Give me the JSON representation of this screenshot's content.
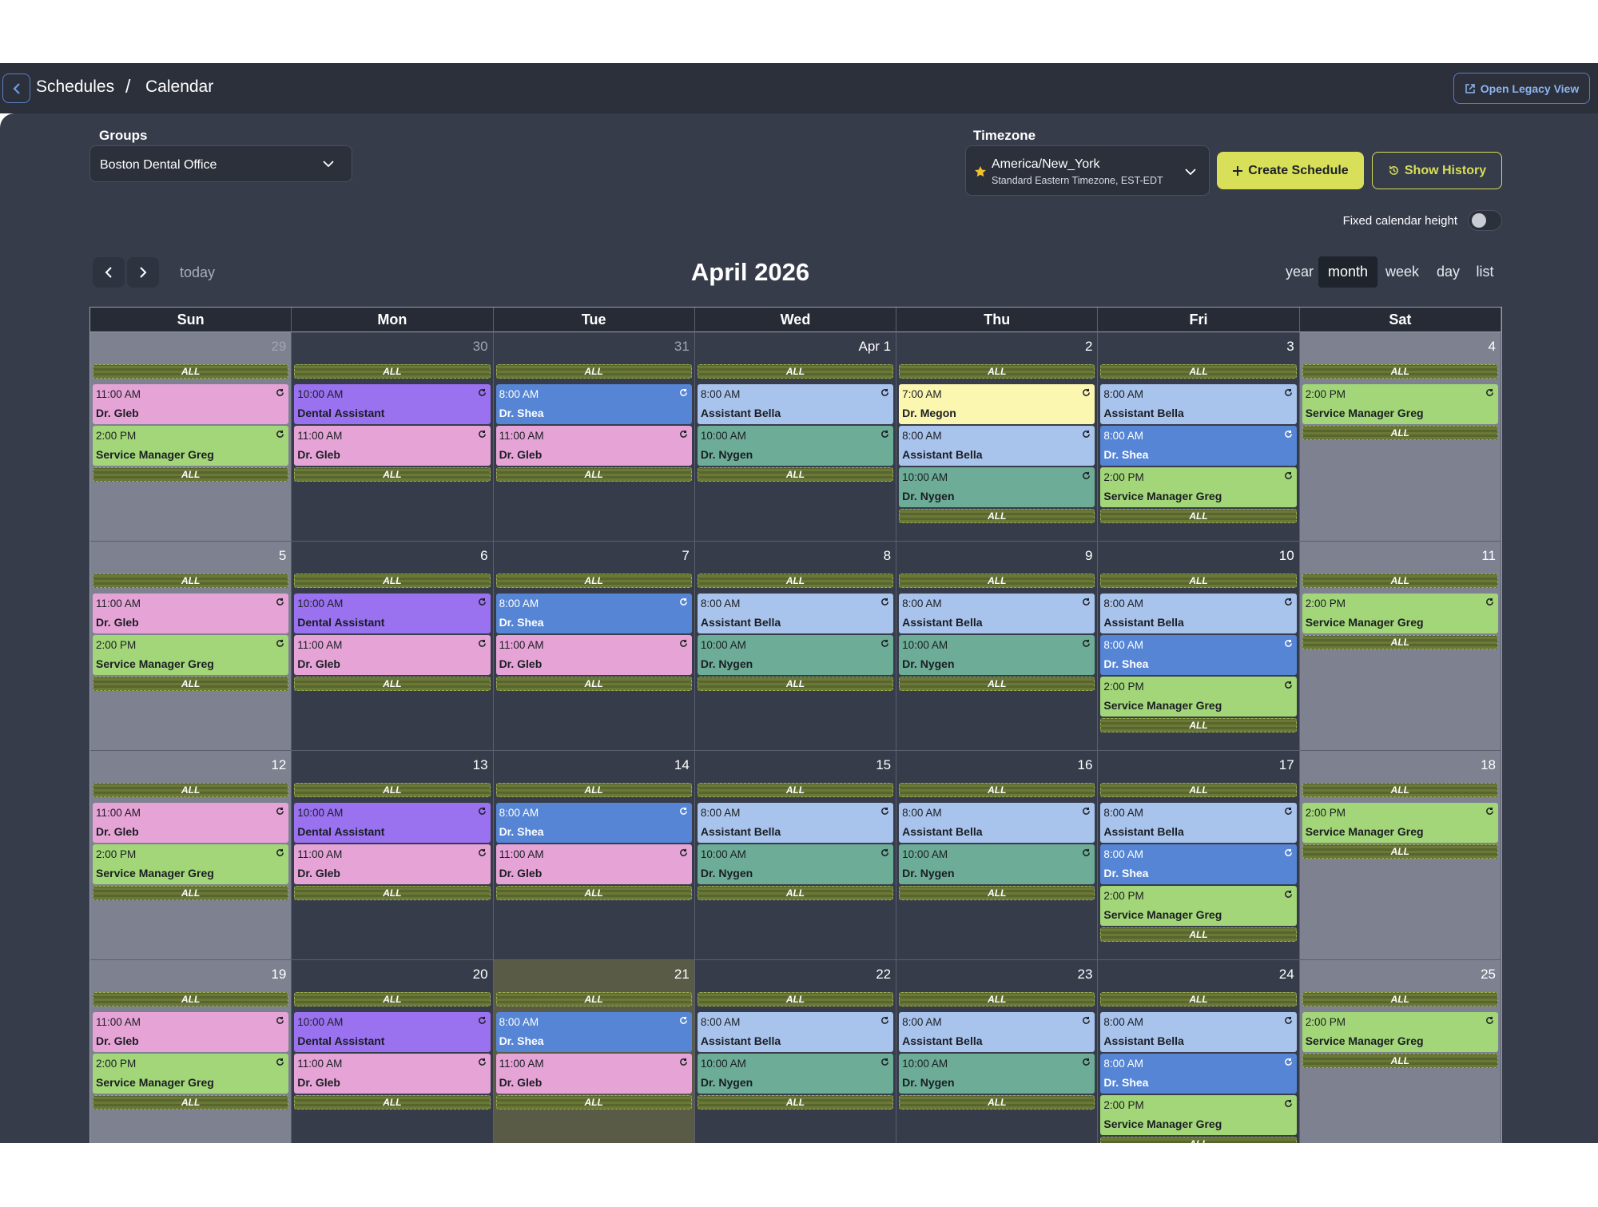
{
  "header": {
    "breadcrumb": [
      "Schedules",
      "/",
      "Calendar"
    ],
    "legacy_button": "Open Legacy View"
  },
  "filters": {
    "groups_label": "Groups",
    "group": "Boston Dental Office",
    "timezone_label": "Timezone",
    "timezone": "America/New_York",
    "timezone_detail": "Standard Eastern Timezone, EST-EDT",
    "create_button": "Create Schedule",
    "history_button": "Show History",
    "fixed_height_label": "Fixed calendar height"
  },
  "toolbar": {
    "today": "today",
    "title": "April 2026",
    "views": [
      "year",
      "month",
      "week",
      "day",
      "list"
    ],
    "active_view": 1
  },
  "calendar": {
    "weekdays": [
      "Sun",
      "Mon",
      "Tue",
      "Wed",
      "Thu",
      "Fri",
      "Sat"
    ],
    "weeks": [
      [
        {
          "label": "29",
          "muted": true,
          "items": [
            "ALL",
            {
              "time": "11:00 AM",
              "title": "Dr. Gleb",
              "color": "#e6a4d6"
            },
            {
              "time": "2:00 PM",
              "title": "Service Manager Greg",
              "color": "#a3d678"
            },
            "ALL"
          ]
        },
        {
          "label": "30",
          "muted": true,
          "items": [
            "ALL",
            {
              "time": "10:00 AM",
              "title": "Dental Assistant",
              "color": "#9a72f0"
            },
            {
              "time": "11:00 AM",
              "title": "Dr. Gleb",
              "color": "#e6a4d6"
            },
            "ALL"
          ]
        },
        {
          "label": "31",
          "muted": true,
          "items": [
            "ALL",
            {
              "time": "8:00 AM",
              "title": "Dr. Shea",
              "color": "#5585d4"
            },
            {
              "time": "11:00 AM",
              "title": "Dr. Gleb",
              "color": "#e6a4d6"
            },
            "ALL"
          ]
        },
        {
          "label": "Apr 1",
          "items": [
            "ALL",
            {
              "time": "8:00 AM",
              "title": "Assistant Bella",
              "color": "#a9c4ec"
            },
            {
              "time": "10:00 AM",
              "title": "Dr. Nygen",
              "color": "#6dac96"
            },
            "ALL"
          ]
        },
        {
          "label": "2",
          "items": [
            "ALL",
            {
              "time": "7:00 AM",
              "title": "Dr. Megon",
              "color": "#fcf7b0"
            },
            {
              "time": "8:00 AM",
              "title": "Assistant Bella",
              "color": "#a9c4ec"
            },
            {
              "time": "10:00 AM",
              "title": "Dr. Nygen",
              "color": "#6dac96"
            },
            "ALL"
          ]
        },
        {
          "label": "3",
          "items": [
            "ALL",
            {
              "time": "8:00 AM",
              "title": "Assistant Bella",
              "color": "#a9c4ec"
            },
            {
              "time": "8:00 AM",
              "title": "Dr. Shea",
              "color": "#5585d4"
            },
            {
              "time": "2:00 PM",
              "title": "Service Manager Greg",
              "color": "#a3d678"
            },
            "ALL"
          ]
        },
        {
          "label": "4",
          "items": [
            "ALL",
            {
              "time": "2:00 PM",
              "title": "Service Manager Greg",
              "color": "#a3d678"
            },
            "ALL"
          ]
        }
      ],
      [
        {
          "label": "5",
          "items": [
            "ALL",
            {
              "time": "11:00 AM",
              "title": "Dr. Gleb",
              "color": "#e6a4d6"
            },
            {
              "time": "2:00 PM",
              "title": "Service Manager Greg",
              "color": "#a3d678"
            },
            "ALL"
          ]
        },
        {
          "label": "6",
          "items": [
            "ALL",
            {
              "time": "10:00 AM",
              "title": "Dental Assistant",
              "color": "#9a72f0"
            },
            {
              "time": "11:00 AM",
              "title": "Dr. Gleb",
              "color": "#e6a4d6"
            },
            "ALL"
          ]
        },
        {
          "label": "7",
          "items": [
            "ALL",
            {
              "time": "8:00 AM",
              "title": "Dr. Shea",
              "color": "#5585d4"
            },
            {
              "time": "11:00 AM",
              "title": "Dr. Gleb",
              "color": "#e6a4d6"
            },
            "ALL"
          ]
        },
        {
          "label": "8",
          "items": [
            "ALL",
            {
              "time": "8:00 AM",
              "title": "Assistant Bella",
              "color": "#a9c4ec"
            },
            {
              "time": "10:00 AM",
              "title": "Dr. Nygen",
              "color": "#6dac96"
            },
            "ALL"
          ]
        },
        {
          "label": "9",
          "items": [
            "ALL",
            {
              "time": "8:00 AM",
              "title": "Assistant Bella",
              "color": "#a9c4ec"
            },
            {
              "time": "10:00 AM",
              "title": "Dr. Nygen",
              "color": "#6dac96"
            },
            "ALL"
          ]
        },
        {
          "label": "10",
          "items": [
            "ALL",
            {
              "time": "8:00 AM",
              "title": "Assistant Bella",
              "color": "#a9c4ec"
            },
            {
              "time": "8:00 AM",
              "title": "Dr. Shea",
              "color": "#5585d4"
            },
            {
              "time": "2:00 PM",
              "title": "Service Manager Greg",
              "color": "#a3d678"
            },
            "ALL"
          ]
        },
        {
          "label": "11",
          "items": [
            "ALL",
            {
              "time": "2:00 PM",
              "title": "Service Manager Greg",
              "color": "#a3d678"
            },
            "ALL"
          ]
        }
      ],
      [
        {
          "label": "12",
          "items": [
            "ALL",
            {
              "time": "11:00 AM",
              "title": "Dr. Gleb",
              "color": "#e6a4d6"
            },
            {
              "time": "2:00 PM",
              "title": "Service Manager Greg",
              "color": "#a3d678"
            },
            "ALL"
          ]
        },
        {
          "label": "13",
          "items": [
            "ALL",
            {
              "time": "10:00 AM",
              "title": "Dental Assistant",
              "color": "#9a72f0"
            },
            {
              "time": "11:00 AM",
              "title": "Dr. Gleb",
              "color": "#e6a4d6"
            },
            "ALL"
          ]
        },
        {
          "label": "14",
          "items": [
            "ALL",
            {
              "time": "8:00 AM",
              "title": "Dr. Shea",
              "color": "#5585d4"
            },
            {
              "time": "11:00 AM",
              "title": "Dr. Gleb",
              "color": "#e6a4d6"
            },
            "ALL"
          ]
        },
        {
          "label": "15",
          "items": [
            "ALL",
            {
              "time": "8:00 AM",
              "title": "Assistant Bella",
              "color": "#a9c4ec"
            },
            {
              "time": "10:00 AM",
              "title": "Dr. Nygen",
              "color": "#6dac96"
            },
            "ALL"
          ]
        },
        {
          "label": "16",
          "items": [
            "ALL",
            {
              "time": "8:00 AM",
              "title": "Assistant Bella",
              "color": "#a9c4ec"
            },
            {
              "time": "10:00 AM",
              "title": "Dr. Nygen",
              "color": "#6dac96"
            },
            "ALL"
          ]
        },
        {
          "label": "17",
          "items": [
            "ALL",
            {
              "time": "8:00 AM",
              "title": "Assistant Bella",
              "color": "#a9c4ec"
            },
            {
              "time": "8:00 AM",
              "title": "Dr. Shea",
              "color": "#5585d4"
            },
            {
              "time": "2:00 PM",
              "title": "Service Manager Greg",
              "color": "#a3d678"
            },
            "ALL"
          ]
        },
        {
          "label": "18",
          "items": [
            "ALL",
            {
              "time": "2:00 PM",
              "title": "Service Manager Greg",
              "color": "#a3d678"
            },
            "ALL"
          ]
        }
      ],
      [
        {
          "label": "19",
          "items": [
            "ALL",
            {
              "time": "11:00 AM",
              "title": "Dr. Gleb",
              "color": "#e6a4d6"
            },
            {
              "time": "2:00 PM",
              "title": "Service Manager Greg",
              "color": "#a3d678"
            },
            "ALL"
          ]
        },
        {
          "label": "20",
          "items": [
            "ALL",
            {
              "time": "10:00 AM",
              "title": "Dental Assistant",
              "color": "#9a72f0"
            },
            {
              "time": "11:00 AM",
              "title": "Dr. Gleb",
              "color": "#e6a4d6"
            },
            "ALL"
          ]
        },
        {
          "label": "21",
          "today": true,
          "items": [
            "ALL",
            {
              "time": "8:00 AM",
              "title": "Dr. Shea",
              "color": "#5585d4"
            },
            {
              "time": "11:00 AM",
              "title": "Dr. Gleb",
              "color": "#e6a4d6"
            },
            "ALL"
          ]
        },
        {
          "label": "22",
          "items": [
            "ALL",
            {
              "time": "8:00 AM",
              "title": "Assistant Bella",
              "color": "#a9c4ec"
            },
            {
              "time": "10:00 AM",
              "title": "Dr. Nygen",
              "color": "#6dac96"
            },
            "ALL"
          ]
        },
        {
          "label": "23",
          "items": [
            "ALL",
            {
              "time": "8:00 AM",
              "title": "Assistant Bella",
              "color": "#a9c4ec"
            },
            {
              "time": "10:00 AM",
              "title": "Dr. Nygen",
              "color": "#6dac96"
            },
            "ALL"
          ]
        },
        {
          "label": "24",
          "items": [
            "ALL",
            {
              "time": "8:00 AM",
              "title": "Assistant Bella",
              "color": "#a9c4ec"
            },
            {
              "time": "8:00 AM",
              "title": "Dr. Shea",
              "color": "#5585d4"
            },
            {
              "time": "2:00 PM",
              "title": "Service Manager Greg",
              "color": "#a3d678"
            },
            "ALL"
          ]
        },
        {
          "label": "25",
          "items": [
            "ALL",
            {
              "time": "2:00 PM",
              "title": "Service Manager Greg",
              "color": "#a3d678"
            },
            "ALL"
          ]
        }
      ]
    ]
  }
}
